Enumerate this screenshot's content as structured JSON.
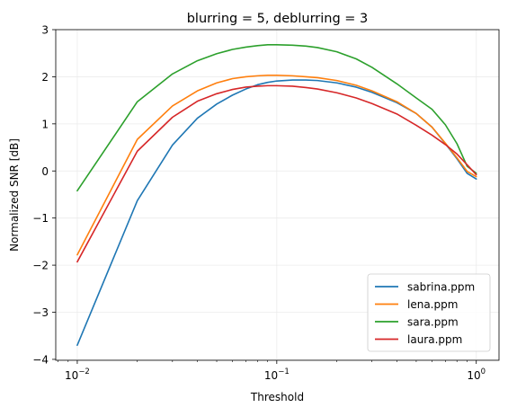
{
  "chart_data": {
    "type": "line",
    "title": "blurring = 5, deblurring = 3",
    "xlabel": "Threshold",
    "ylabel": "Normalized SNR [dB]",
    "xscale": "log",
    "xlim": [
      0.0078,
      1.3
    ],
    "ylim": [
      -4.02,
      3.0
    ],
    "xticks": [
      {
        "value": 0.01,
        "base": "10",
        "exp": "−2"
      },
      {
        "value": 0.1,
        "base": "10",
        "exp": "−1"
      },
      {
        "value": 1,
        "base": "10",
        "exp": "0"
      }
    ],
    "yticks": [
      {
        "value": -4,
        "label": "−4"
      },
      {
        "value": -3,
        "label": "−3"
      },
      {
        "value": -2,
        "label": "−2"
      },
      {
        "value": -1,
        "label": "−1"
      },
      {
        "value": 0,
        "label": "0"
      },
      {
        "value": 1,
        "label": "1"
      },
      {
        "value": 2,
        "label": "2"
      },
      {
        "value": 3,
        "label": "3"
      }
    ],
    "grid": true,
    "legend": "bottom-right",
    "x": [
      0.01,
      0.02,
      0.03,
      0.04,
      0.05,
      0.06,
      0.07,
      0.08,
      0.09,
      0.1,
      0.12,
      0.14,
      0.16,
      0.2,
      0.25,
      0.3,
      0.4,
      0.5,
      0.6,
      0.7,
      0.8,
      0.9,
      1.0
    ],
    "series": [
      {
        "name": "sabrina.ppm",
        "color": "#1f77b4",
        "values": [
          -3.7,
          -0.63,
          0.55,
          1.12,
          1.42,
          1.61,
          1.74,
          1.83,
          1.88,
          1.91,
          1.93,
          1.93,
          1.92,
          1.87,
          1.78,
          1.67,
          1.45,
          1.22,
          0.93,
          0.58,
          0.26,
          -0.05,
          -0.17
        ]
      },
      {
        "name": "lena.ppm",
        "color": "#ff7f0e",
        "values": [
          -1.78,
          0.67,
          1.38,
          1.7,
          1.87,
          1.96,
          2.0,
          2.02,
          2.03,
          2.03,
          2.02,
          2.0,
          1.98,
          1.92,
          1.82,
          1.7,
          1.47,
          1.22,
          0.93,
          0.59,
          0.28,
          -0.01,
          -0.12
        ]
      },
      {
        "name": "sara.ppm",
        "color": "#2ca02c",
        "values": [
          -0.42,
          1.47,
          2.06,
          2.34,
          2.49,
          2.58,
          2.63,
          2.66,
          2.68,
          2.68,
          2.67,
          2.65,
          2.62,
          2.53,
          2.38,
          2.2,
          1.85,
          1.55,
          1.31,
          0.98,
          0.58,
          0.1,
          -0.05
        ]
      },
      {
        "name": "laura.ppm",
        "color": "#d62728",
        "values": [
          -1.93,
          0.42,
          1.14,
          1.48,
          1.64,
          1.73,
          1.78,
          1.8,
          1.81,
          1.81,
          1.8,
          1.77,
          1.74,
          1.66,
          1.55,
          1.43,
          1.21,
          0.97,
          0.76,
          0.56,
          0.36,
          0.13,
          -0.08
        ]
      }
    ]
  }
}
